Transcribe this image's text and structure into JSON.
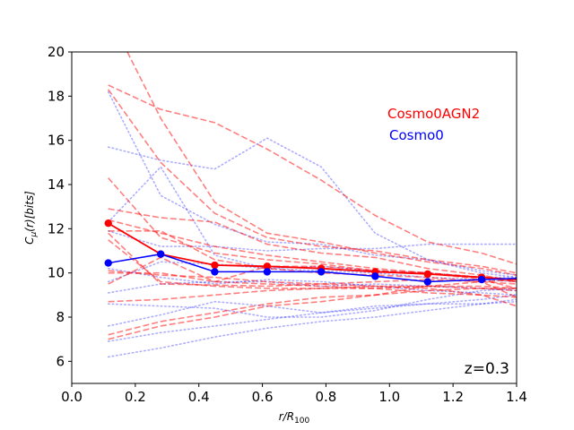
{
  "chart_data": {
    "type": "line",
    "xlabel": "r/R",
    "xlabel_sub": "100",
    "ylabel_main": "C",
    "ylabel_mu": "μ",
    "ylabel_rest": "(r)[bits]",
    "xlim": [
      0.0,
      1.4
    ],
    "ylim": [
      5,
      20
    ],
    "xticks": [
      0.0,
      0.2,
      0.4,
      0.6,
      0.8,
      1.0,
      1.2,
      1.4
    ],
    "xtick_labels": [
      "0.0",
      "0.2",
      "0.4",
      "0.6",
      "0.8",
      "1.0",
      "1.2",
      "1.4"
    ],
    "yticks": [
      6,
      8,
      10,
      12,
      14,
      16,
      18,
      20
    ],
    "ytick_labels": [
      "6",
      "8",
      "10",
      "12",
      "14",
      "16",
      "18",
      "20"
    ],
    "annotation": "z=0.3",
    "legend": [
      {
        "label": "Cosmo0AGN2",
        "color": "#ff0000"
      },
      {
        "label": "Cosmo0",
        "color": "#0000ff"
      }
    ],
    "x": [
      0.115,
      0.28,
      0.45,
      0.615,
      0.785,
      0.955,
      1.12,
      1.29,
      1.4
    ],
    "series": [
      {
        "name": "Cosmo0AGN2 median",
        "color": "#ff0000",
        "style": "solid-marker",
        "values": [
          12.25,
          10.85,
          10.35,
          10.3,
          10.2,
          10.05,
          9.95,
          9.8,
          9.7
        ]
      },
      {
        "name": "Cosmo0 median",
        "color": "#0000ff",
        "style": "solid-marker",
        "values": [
          10.45,
          10.85,
          10.05,
          10.05,
          10.05,
          9.85,
          9.6,
          9.7,
          9.75
        ]
      },
      {
        "name": "Cosmo0AGN2 halo 1",
        "color": "#ff0000",
        "style": "dashed",
        "x": [
          0.175,
          0.28,
          0.45,
          0.615,
          0.785,
          0.955,
          1.12,
          1.29,
          1.4
        ],
        "values": [
          20.0,
          17.0,
          13.2,
          11.8,
          11.4,
          10.9,
          10.5,
          10.2,
          9.9
        ]
      },
      {
        "name": "Cosmo0AGN2 halo 2",
        "values": [
          18.5,
          17.4,
          16.8,
          15.6,
          14.2,
          12.6,
          11.4,
          10.9,
          10.4
        ]
      },
      {
        "name": "Cosmo0AGN2 halo 3",
        "values": [
          18.3,
          15.0,
          12.7,
          11.6,
          11.2,
          11.0,
          10.6,
          10.3,
          10.0
        ]
      },
      {
        "name": "Cosmo0AGN2 halo 4",
        "values": [
          14.3,
          11.6,
          10.9,
          10.6,
          10.4,
          10.1,
          10.0,
          9.8,
          9.6
        ]
      },
      {
        "name": "Cosmo0AGN2 halo 5",
        "values": [
          12.9,
          12.5,
          12.3,
          11.3,
          10.9,
          10.7,
          10.2,
          9.9,
          9.6
        ]
      },
      {
        "name": "Cosmo0AGN2 halo 6",
        "values": [
          12.4,
          11.8,
          11.2,
          10.8,
          10.5,
          10.2,
          10.0,
          9.7,
          9.3
        ]
      },
      {
        "name": "Cosmo0AGN2 halo 7",
        "values": [
          11.9,
          11.9,
          10.6,
          10.2,
          10.0,
          9.9,
          9.8,
          9.6,
          8.9
        ]
      },
      {
        "name": "Cosmo0AGN2 halo 8",
        "values": [
          11.8,
          9.5,
          9.45,
          9.4,
          9.5,
          9.6,
          9.7,
          9.6,
          9.5
        ]
      },
      {
        "name": "Cosmo0AGN2 halo 9",
        "values": [
          11.5,
          9.6,
          9.4,
          9.3,
          9.3,
          9.4,
          9.4,
          9.3,
          9.2
        ]
      },
      {
        "name": "Cosmo0AGN2 halo 10",
        "values": [
          9.5,
          10.7,
          9.6,
          10.3,
          10.3,
          10.1,
          10.0,
          9.8,
          9.6
        ]
      },
      {
        "name": "Cosmo0AGN2 halo 11",
        "values": [
          10.0,
          10.0,
          9.6,
          9.5,
          9.4,
          9.3,
          9.4,
          9.4,
          9.3
        ]
      },
      {
        "name": "Cosmo0AGN2 halo 12",
        "values": [
          8.7,
          8.8,
          9.0,
          9.2,
          9.3,
          9.3,
          9.1,
          9.0,
          8.9
        ]
      },
      {
        "name": "Cosmo0AGN2 halo 13",
        "values": [
          7.2,
          7.8,
          8.2,
          8.6,
          8.9,
          9.0,
          9.2,
          9.3,
          9.3
        ]
      },
      {
        "name": "Cosmo0AGN2 halo 14",
        "values": [
          7.0,
          7.6,
          8.0,
          8.5,
          8.7,
          9.0,
          9.4,
          9.6,
          9.7
        ]
      },
      {
        "name": "Cosmo0AGN2 halo 15",
        "values": [
          10.1,
          9.9,
          9.8,
          9.6,
          9.5,
          9.4,
          9.3,
          9.0,
          8.5
        ]
      },
      {
        "name": "Cosmo0 halo 1",
        "values": [
          18.2,
          13.5,
          12.2,
          11.4,
          11.3,
          10.8,
          10.6,
          10.0,
          9.8
        ]
      },
      {
        "name": "Cosmo0 halo 2",
        "values": [
          15.7,
          15.1,
          14.7,
          16.1,
          14.8,
          11.8,
          10.6,
          10.1,
          9.9
        ]
      },
      {
        "name": "Cosmo0 halo 3",
        "values": [
          12.3,
          14.8,
          10.8,
          10.2,
          10.1,
          10.0,
          9.8,
          9.7,
          9.6
        ]
      },
      {
        "name": "Cosmo0 halo 4",
        "values": [
          11.9,
          11.2,
          11.2,
          11.0,
          11.1,
          11.1,
          11.3,
          11.3,
          11.3
        ]
      },
      {
        "name": "Cosmo0 halo 5",
        "values": [
          9.6,
          10.5,
          10.4,
          10.2,
          10.3,
          10.1,
          10.0,
          9.8,
          9.8
        ]
      },
      {
        "name": "Cosmo0 halo 6",
        "values": [
          9.1,
          9.5,
          9.6,
          9.6,
          9.4,
          9.5,
          9.4,
          9.3,
          9.2
        ]
      },
      {
        "name": "Cosmo0 halo 7",
        "values": [
          8.6,
          8.5,
          8.4,
          8.0,
          8.0,
          8.3,
          8.8,
          9.2,
          9.3
        ]
      },
      {
        "name": "Cosmo0 halo 8",
        "values": [
          7.6,
          8.1,
          8.7,
          8.5,
          8.2,
          8.5,
          8.6,
          8.6,
          8.7
        ]
      },
      {
        "name": "Cosmo0 halo 9",
        "values": [
          6.9,
          7.3,
          7.6,
          7.9,
          8.2,
          8.4,
          8.6,
          8.8,
          9.0
        ]
      },
      {
        "name": "Cosmo0 halo 10",
        "values": [
          6.2,
          6.6,
          7.1,
          7.5,
          7.8,
          8.0,
          8.3,
          8.6,
          8.8
        ]
      },
      {
        "name": "Cosmo0 halo 11",
        "values": [
          10.2,
          9.8,
          9.5,
          9.7,
          9.6,
          9.4,
          9.2,
          9.1,
          9.0
        ]
      }
    ]
  }
}
